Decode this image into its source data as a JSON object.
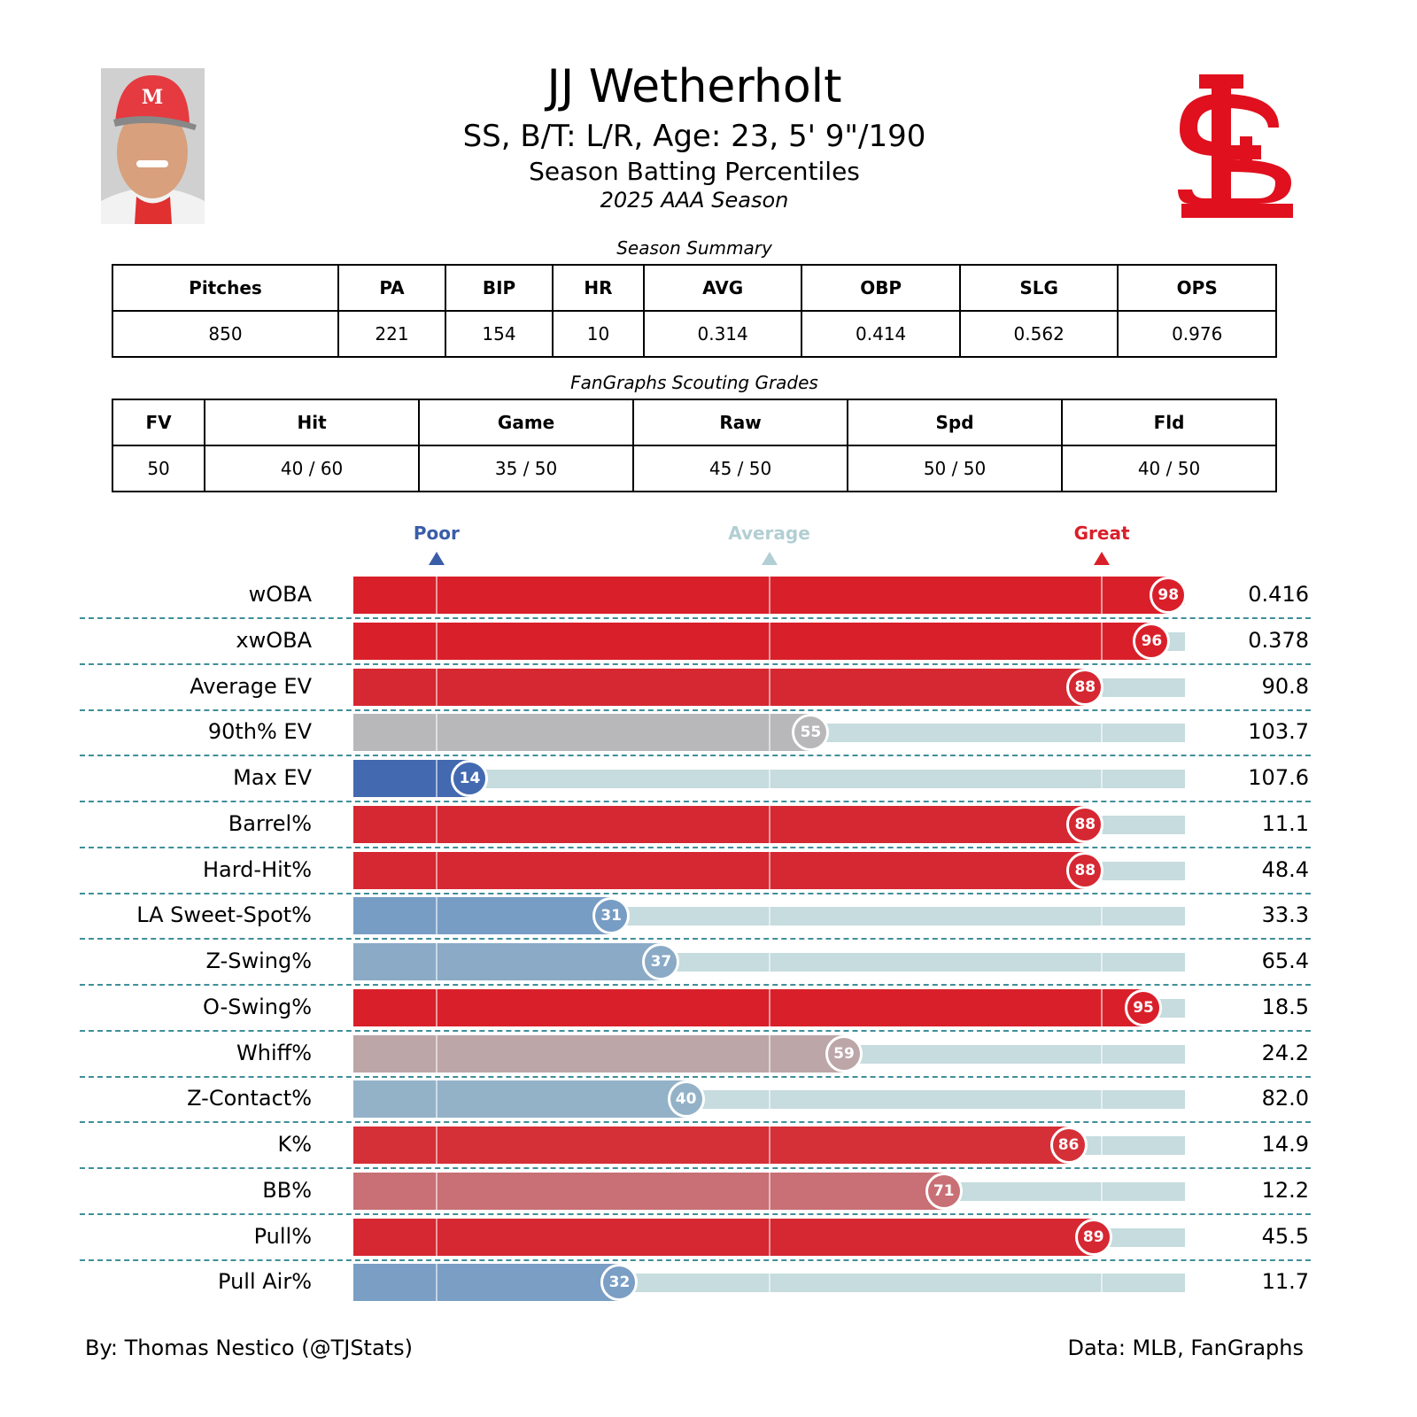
{
  "header": {
    "name": "JJ Wetherholt",
    "bio": "SS, B/T: L/R, Age: 23, 5' 9\"/190",
    "subtitle": "Season Batting Percentiles",
    "season": "2025 AAA Season"
  },
  "season_summary": {
    "caption": "Season Summary",
    "headers": [
      "Pitches",
      "PA",
      "BIP",
      "HR",
      "AVG",
      "OBP",
      "SLG",
      "OPS"
    ],
    "values": [
      "850",
      "221",
      "154",
      "10",
      "0.314",
      "0.414",
      "0.562",
      "0.976"
    ]
  },
  "scouting": {
    "caption": "FanGraphs Scouting Grades",
    "headers": [
      "FV",
      "Hit",
      "Game",
      "Raw",
      "Spd",
      "Fld"
    ],
    "values": [
      "50",
      "40 / 60",
      "35 / 50",
      "45 / 50",
      "50 / 50",
      "40 / 50"
    ]
  },
  "logo": {
    "text": "STL",
    "color": "#e0101e"
  },
  "chart_data": {
    "type": "bar",
    "orientation": "horizontal",
    "title": "Season Batting Percentiles",
    "xlim": [
      0,
      100
    ],
    "markers": [
      {
        "label": "Poor",
        "value": 10,
        "color": "#3a5da8"
      },
      {
        "label": "Average",
        "value": 50,
        "color": "#b2cfd3"
      },
      {
        "label": "Great",
        "value": 90,
        "color": "#d9202a"
      }
    ],
    "categories": [
      "wOBA",
      "xwOBA",
      "Average EV",
      "90th% EV",
      "Max EV",
      "Barrel%",
      "Hard-Hit%",
      "LA Sweet-Spot%",
      "Z-Swing%",
      "O-Swing%",
      "Whiff%",
      "Z-Contact%",
      "K%",
      "BB%",
      "Pull%",
      "Pull Air%"
    ],
    "percentiles": [
      98,
      96,
      88,
      55,
      14,
      88,
      88,
      31,
      37,
      95,
      59,
      40,
      86,
      71,
      89,
      32
    ],
    "stat_values": [
      "0.416",
      "0.378",
      "90.8",
      "103.7",
      "107.6",
      "11.1",
      "48.4",
      "33.3",
      "65.4",
      "18.5",
      "24.2",
      "82.0",
      "14.9",
      "12.2",
      "45.5",
      "11.7"
    ],
    "colors": [
      "#d9202a",
      "#d9202a",
      "#d62832",
      "#b8b8ba",
      "#4369b0",
      "#d62832",
      "#d62832",
      "#789dc4",
      "#8aaac6",
      "#d9202a",
      "#bca6a8",
      "#93b2c8",
      "#d53038",
      "#c87075",
      "#d62832",
      "#7a9ec4"
    ]
  },
  "footer": {
    "left": "By: Thomas Nestico (@TJStats)",
    "right": "Data: MLB, FanGraphs"
  }
}
